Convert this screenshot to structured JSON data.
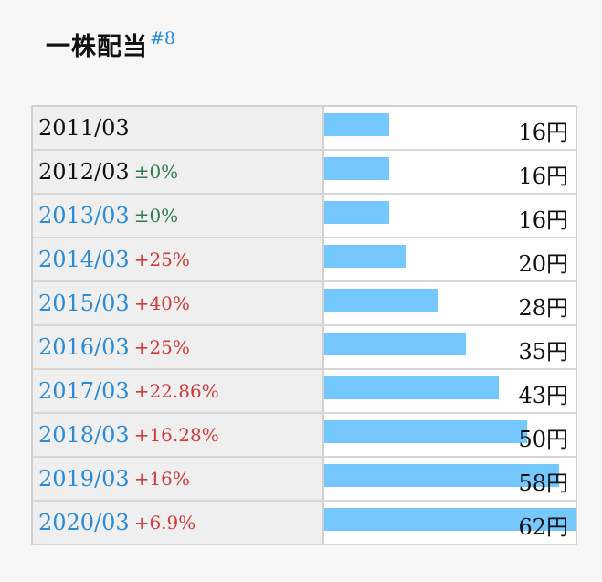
{
  "title": "一株配当",
  "title_anchor": "#8",
  "rows": [
    {
      "date": "2011/03",
      "change": "",
      "amount": "16円",
      "value": 16,
      "link": false,
      "kind": "none"
    },
    {
      "date": "2012/03",
      "change": "±0%",
      "amount": "16円",
      "value": 16,
      "link": false,
      "kind": "flat"
    },
    {
      "date": "2013/03",
      "change": "±0%",
      "amount": "16円",
      "value": 16,
      "link": true,
      "kind": "flat"
    },
    {
      "date": "2014/03",
      "change": "+25%",
      "amount": "20円",
      "value": 20,
      "link": true,
      "kind": "up"
    },
    {
      "date": "2015/03",
      "change": "+40%",
      "amount": "28円",
      "value": 28,
      "link": true,
      "kind": "up"
    },
    {
      "date": "2016/03",
      "change": "+25%",
      "amount": "35円",
      "value": 35,
      "link": true,
      "kind": "up"
    },
    {
      "date": "2017/03",
      "change": "+22.86%",
      "amount": "43円",
      "value": 43,
      "link": true,
      "kind": "up"
    },
    {
      "date": "2018/03",
      "change": "+16.28%",
      "amount": "50円",
      "value": 50,
      "link": true,
      "kind": "up"
    },
    {
      "date": "2019/03",
      "change": "+16%",
      "amount": "58円",
      "value": 58,
      "link": true,
      "kind": "up"
    },
    {
      "date": "2020/03",
      "change": "+6.9%",
      "amount": "62円",
      "value": 62,
      "link": true,
      "kind": "up"
    }
  ],
  "colors": {
    "bar": "#75c8fd",
    "link": "#2b8bd6",
    "positive": "#d03a3a",
    "neutral": "#2e7d4f"
  },
  "chart_data": {
    "type": "bar",
    "categories": [
      "2011/03",
      "2012/03",
      "2013/03",
      "2014/03",
      "2015/03",
      "2016/03",
      "2017/03",
      "2018/03",
      "2019/03",
      "2020/03"
    ],
    "values": [
      16,
      16,
      16,
      20,
      28,
      35,
      43,
      50,
      58,
      62
    ],
    "title": "一株配当",
    "xlabel": "",
    "ylabel": "",
    "ylim": [
      0,
      62
    ]
  }
}
